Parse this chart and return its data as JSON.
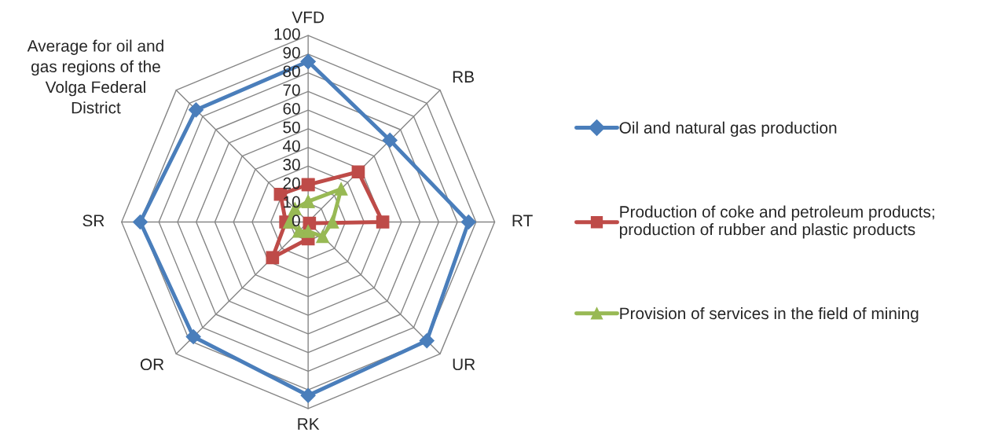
{
  "chart_data": {
    "type": "radar",
    "categories": [
      "VFD",
      "RB",
      "RT",
      "UR",
      "RK",
      "OR",
      "SR",
      "Average for oil and gas regions of the Volga Federal District"
    ],
    "ylim": [
      0,
      100
    ],
    "yticks": [
      0,
      10,
      20,
      30,
      40,
      50,
      60,
      70,
      80,
      90,
      100
    ],
    "legend": "right",
    "grid": true,
    "series": [
      {
        "name": "Oil and natural gas production",
        "color": "#4a7ebb",
        "marker": "diamond",
        "values": [
          86,
          62,
          86,
          90,
          93,
          87,
          90,
          85
        ]
      },
      {
        "name": "Production of coke and petroleum products; production of rubber and plastic products",
        "color": "#be4b48",
        "marker": "square",
        "values": [
          20,
          38,
          40,
          1,
          9,
          27,
          12,
          21
        ]
      },
      {
        "name": "Provision of services in the field of mining",
        "color": "#98b954",
        "marker": "triangle",
        "values": [
          11,
          25,
          13,
          11,
          5,
          7,
          10,
          10
        ]
      }
    ]
  }
}
